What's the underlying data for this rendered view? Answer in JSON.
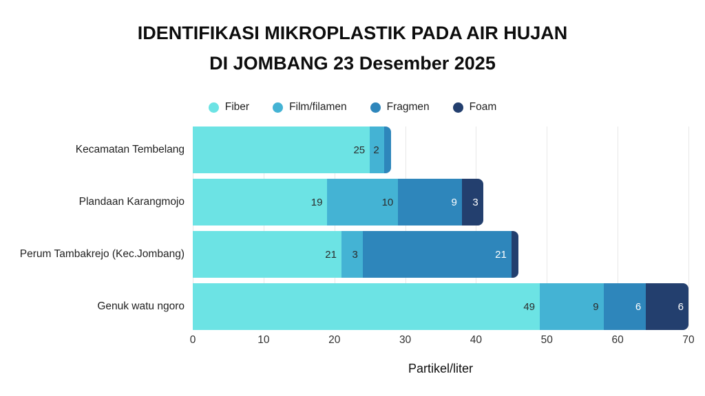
{
  "title": {
    "line1": "IDENTIFIKASI MIKROPLASTIK PADA AIR HUJAN",
    "line2": "DI JOMBANG 23 Desember 2025"
  },
  "chart_data": {
    "type": "bar",
    "orientation": "horizontal",
    "stacked": true,
    "title": "IDENTIFIKASI MIKROPLASTIK PADA AIR HUJAN DI JOMBANG 23 Desember 2025",
    "categories": [
      "Kecamatan Tembelang",
      "Plandaan Karangmojo",
      "Perum Tambakrejo (Kec.Jombang)",
      "Genuk watu ngoro"
    ],
    "series": [
      {
        "name": "Fiber",
        "color": "#6CE3E4",
        "label_color": "#2b2b2b",
        "values": [
          25,
          19,
          21,
          49
        ]
      },
      {
        "name": "Film/filamen",
        "color": "#44B3D4",
        "label_color": "#2b2b2b",
        "values": [
          2,
          10,
          3,
          9
        ]
      },
      {
        "name": "Fragmen",
        "color": "#2E86BB",
        "label_color": "#ffffff",
        "values": [
          1,
          9,
          21,
          6
        ]
      },
      {
        "name": "Foam",
        "color": "#233F6E",
        "label_color": "#ffffff",
        "values": [
          0,
          3,
          1,
          6
        ]
      }
    ],
    "totals": [
      28,
      41,
      46,
      70
    ],
    "xlabel": "Partikel/liter",
    "xlim": [
      0,
      70
    ],
    "xticks": [
      0,
      10,
      20,
      30,
      40,
      50,
      60,
      70
    ],
    "grid": "vertical",
    "gridline_color": "#e7e7e7",
    "legend_position": "top",
    "min_value_for_label": 2,
    "background_color": "#ffffff"
  }
}
